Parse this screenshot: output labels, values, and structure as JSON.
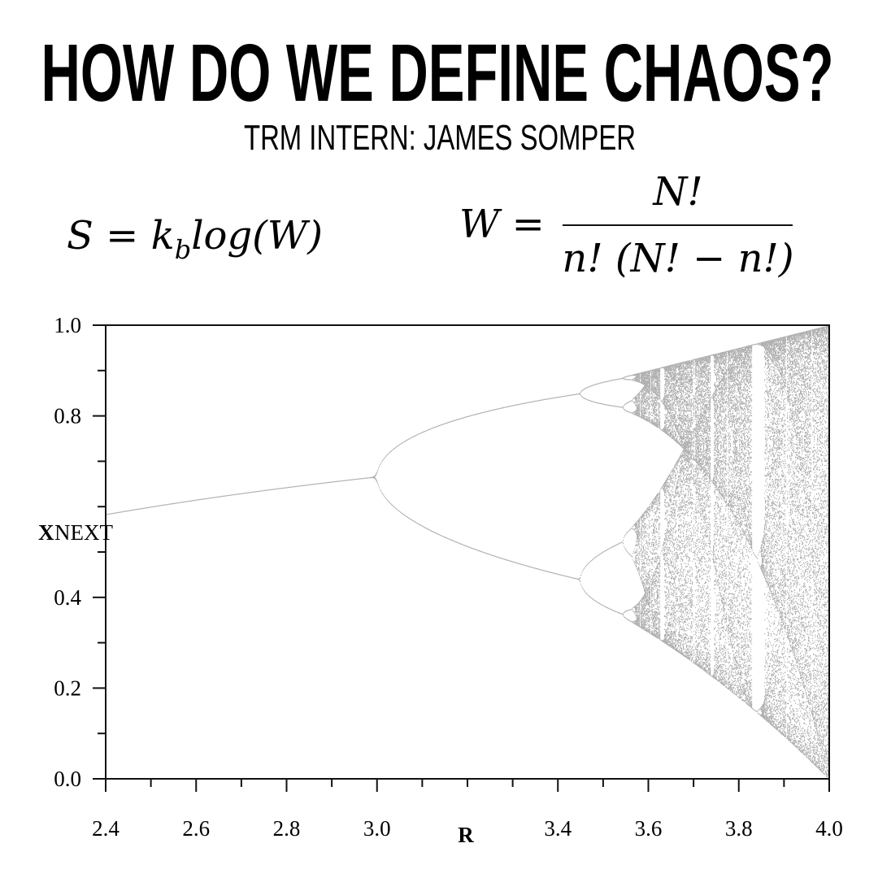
{
  "header": {
    "title": "HOW DO WE DEFINE CHAOS?",
    "subtitle": "TRM INTERN: JAMES SOMPER"
  },
  "equations": [
    {
      "lhs": "S = k",
      "sub": "b",
      "rhs": "log(W)"
    },
    {
      "lhs": "W =",
      "numerator": "N!",
      "denominator": "n! (N! − n!)"
    }
  ],
  "chart_data": {
    "type": "bifurcation",
    "xlabel": "R",
    "ylabel": "X",
    "ylabel_sub": "NEXT",
    "xlim": [
      2.4,
      4.0
    ],
    "ylim": [
      0,
      1
    ],
    "xticks": [
      2.4,
      2.6,
      2.8,
      {
        "value": 3,
        "label": "3.0"
      },
      3.4,
      3.6,
      3.8,
      {
        "value": 4,
        "label": "4.0"
      }
    ],
    "xminorticks": [
      2.5,
      2.7,
      2.9,
      3.1,
      3.2,
      3.3,
      3.5,
      3.7,
      3.9
    ],
    "yticks": [
      {
        "value": 0,
        "label": "0.0"
      },
      0.2,
      0.4,
      0.8,
      {
        "value": 1,
        "label": "1.0"
      }
    ],
    "yminorticks": [
      0.1,
      0.3,
      0.5,
      0.6,
      0.7,
      0.9
    ]
  }
}
